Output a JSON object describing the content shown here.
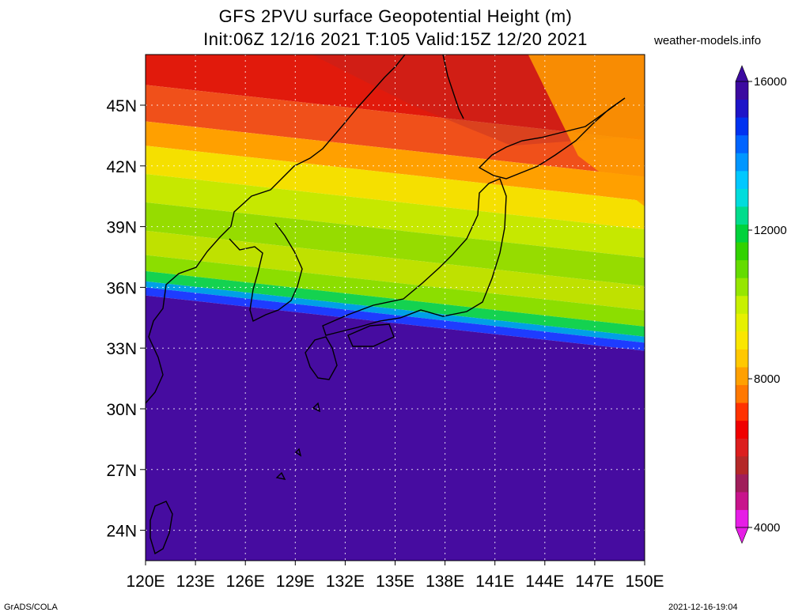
{
  "title": {
    "line1": "GFS 2PVU surface Geopotential Height (m)",
    "line2": "Init:06Z 12/16 2021 T:105 Valid:15Z 12/20 2021"
  },
  "credit": "weather-models.info",
  "footer": {
    "left": "GrADS/COLA",
    "right": "2021-12-16-19:04"
  },
  "map": {
    "lon_range": [
      120,
      150
    ],
    "lat_range": [
      22.5,
      47.5
    ],
    "lon_ticks": [
      {
        "value": 120,
        "label": "120E"
      },
      {
        "value": 123,
        "label": "123E"
      },
      {
        "value": 126,
        "label": "126E"
      },
      {
        "value": 129,
        "label": "129E"
      },
      {
        "value": 132,
        "label": "132E"
      },
      {
        "value": 135,
        "label": "135E"
      },
      {
        "value": 138,
        "label": "138E"
      },
      {
        "value": 141,
        "label": "141E"
      },
      {
        "value": 144,
        "label": "144E"
      },
      {
        "value": 147,
        "label": "147E"
      },
      {
        "value": 150,
        "label": "150E"
      }
    ],
    "lat_ticks": [
      {
        "value": 24,
        "label": "24N"
      },
      {
        "value": 27,
        "label": "27N"
      },
      {
        "value": 30,
        "label": "30N"
      },
      {
        "value": 33,
        "label": "33N"
      },
      {
        "value": 36,
        "label": "36N"
      },
      {
        "value": 39,
        "label": "39N"
      },
      {
        "value": 42,
        "label": "42N"
      },
      {
        "value": 45,
        "label": "45N"
      }
    ],
    "field_bands": [
      {
        "lat_from": 46.0,
        "lat_to": 47.5,
        "color": "#e11a0c"
      },
      {
        "lat_from": 44.2,
        "lat_to": 46.0,
        "color": "#f0501a"
      },
      {
        "lat_from": 43.0,
        "lat_to": 44.2,
        "color": "#ffa000"
      },
      {
        "lat_from": 41.6,
        "lat_to": 43.0,
        "color": "#f5e000"
      },
      {
        "lat_from": 40.2,
        "lat_to": 41.6,
        "color": "#c6e800"
      },
      {
        "lat_from": 38.8,
        "lat_to": 40.2,
        "color": "#96dc00"
      },
      {
        "lat_from": 37.6,
        "lat_to": 38.8,
        "color": "#bfe100"
      },
      {
        "lat_from": 36.8,
        "lat_to": 37.6,
        "color": "#8cde00"
      },
      {
        "lat_from": 36.3,
        "lat_to": 36.8,
        "color": "#14d250"
      },
      {
        "lat_from": 36.0,
        "lat_to": 36.3,
        "color": "#00a0e6"
      },
      {
        "lat_from": 35.6,
        "lat_to": 36.0,
        "color": "#1e3cff"
      },
      {
        "lat_from": 22.5,
        "lat_to": 35.6,
        "color": "#460ca0"
      }
    ]
  },
  "colorbar": {
    "min": 4000,
    "max": 16000,
    "ticks": [
      {
        "value": 4000,
        "label": "4000"
      },
      {
        "value": 8000,
        "label": "8000"
      },
      {
        "value": 12000,
        "label": "12000"
      },
      {
        "value": 16000,
        "label": "16000"
      }
    ],
    "colors": [
      "#e61ee6",
      "#c8148c",
      "#a01e5a",
      "#b42828",
      "#dc1e1e",
      "#f00000",
      "#ff3200",
      "#ff7800",
      "#ffa000",
      "#ffc800",
      "#fae600",
      "#e6f000",
      "#c8f000",
      "#96e600",
      "#64dc00",
      "#32d200",
      "#00d23c",
      "#00dc8c",
      "#00dcdc",
      "#00c8ff",
      "#0096ff",
      "#0064ff",
      "#0032f0",
      "#1e14c8",
      "#3c0aa0"
    ]
  }
}
